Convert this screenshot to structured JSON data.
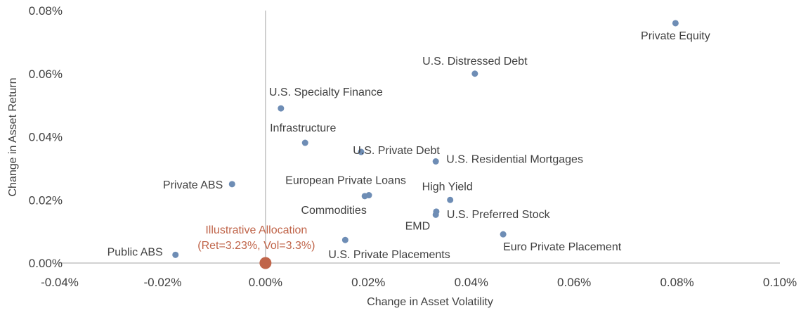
{
  "chart_data": {
    "type": "scatter",
    "xlabel": "Change in Asset Volatility",
    "ylabel": "Change in Asset Return",
    "xlim": [
      -0.04,
      0.1
    ],
    "ylim": [
      0,
      0.08
    ],
    "x_ticks": [
      -0.04,
      -0.02,
      0.0,
      0.02,
      0.04,
      0.06,
      0.08,
      0.1
    ],
    "y_ticks": [
      0.0,
      0.02,
      0.04,
      0.06,
      0.08
    ],
    "x_tick_labels": [
      "-0.04%",
      "-0.02%",
      "0.00%",
      "0.02%",
      "0.04%",
      "0.06%",
      "0.08%",
      "0.10%"
    ],
    "y_tick_labels": [
      "0.00%",
      "0.02%",
      "0.04%",
      "0.06%",
      "0.08%"
    ],
    "unit": "%",
    "grid": false,
    "colors": {
      "points": "#6e8db5",
      "highlight": "#c0654a",
      "axis": "#a6a6a6",
      "text": "#404040"
    },
    "points": [
      {
        "name": "Private Equity",
        "x": 0.0797,
        "y": 0.076
      },
      {
        "name": "U.S. Distressed Debt",
        "x": 0.0407,
        "y": 0.06
      },
      {
        "name": "U.S. Specialty Finance",
        "x": 0.003,
        "y": 0.049
      },
      {
        "name": "Infrastructure",
        "x": 0.0077,
        "y": 0.0381
      },
      {
        "name": "U.S. Private Debt",
        "x": 0.0186,
        "y": 0.0352
      },
      {
        "name": "U.S. Residential Mortgages",
        "x": 0.0331,
        "y": 0.0322
      },
      {
        "name": "Private ABS",
        "x": -0.0065,
        "y": 0.025
      },
      {
        "name": "European Private Loans",
        "x": 0.0201,
        "y": 0.0215
      },
      {
        "name": "Commodities",
        "x": 0.0193,
        "y": 0.0212
      },
      {
        "name": "High Yield",
        "x": 0.0359,
        "y": 0.02
      },
      {
        "name": "U.S. Preferred Stock",
        "x": 0.0332,
        "y": 0.0163
      },
      {
        "name": "EMD",
        "x": 0.0331,
        "y": 0.0153
      },
      {
        "name": "Euro Private Placement",
        "x": 0.0462,
        "y": 0.0091
      },
      {
        "name": "U.S. Private Placements",
        "x": 0.0155,
        "y": 0.0073
      },
      {
        "name": "Public ABS",
        "x": -0.0175,
        "y": 0.0026
      }
    ],
    "highlight": {
      "name": "Illustrative Allocation",
      "detail": "(Ret=3.23%, Vol=3.3%)",
      "x": 0.0,
      "y": 0.0
    }
  }
}
